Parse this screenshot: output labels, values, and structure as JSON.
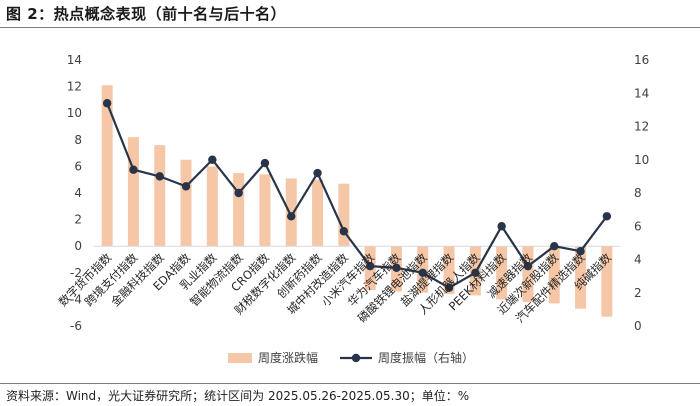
{
  "header": {
    "title": "图 2：热点概念表现（前十名与后十名）"
  },
  "footer": {
    "source": "资料来源：Wind，光大证券研究所；统计区间为 2025.05.26-2025.05.30；单位：%"
  },
  "colors": {
    "bar": "#f6c7a6",
    "line": "#273449",
    "axis": "#d9d9d9"
  },
  "chart_data": {
    "type": "bar",
    "categories": [
      "数字货币指数",
      "跨境支付指数",
      "金融科技指数",
      "EDA指数",
      "乳业指数",
      "智能物流指数",
      "CRO指数",
      "财税数字化指数",
      "创新药指数",
      "城中村改造指数",
      "小米汽车指数",
      "华为汽车指数",
      "磷酸铁锂电池指数",
      "盐湖提锂指数",
      "人形机器人指数",
      "PEEK材料指数",
      "减速器指数",
      "近端次新股指数",
      "汽车配件精选指数",
      "纯碱指数"
    ],
    "series": [
      {
        "name": "周度涨跌幅",
        "axis": "left",
        "values": [
          12.1,
          8.2,
          7.6,
          6.5,
          6.0,
          5.5,
          5.4,
          5.1,
          5.0,
          4.7,
          -3.3,
          -3.4,
          -3.5,
          -3.6,
          -3.7,
          -4.0,
          -4.2,
          -4.3,
          -4.7,
          -5.3
        ]
      },
      {
        "name": "周度振幅（右轴）",
        "axis": "right",
        "values": [
          13.4,
          9.4,
          9.0,
          8.4,
          10.0,
          8.0,
          9.8,
          6.6,
          9.2,
          5.7,
          3.6,
          3.5,
          3.2,
          2.3,
          3.2,
          6.0,
          3.6,
          4.8,
          4.5,
          6.6
        ]
      }
    ],
    "yticks_left": [
      -6,
      -4,
      -2,
      0,
      2,
      4,
      6,
      8,
      10,
      12,
      14
    ],
    "yticks_right": [
      0,
      2,
      4,
      6,
      8,
      10,
      12,
      14,
      16
    ],
    "ylim_left": [
      -6,
      14
    ],
    "ylim_right": [
      0,
      16
    ],
    "legend_position": "bottom",
    "grid": false
  }
}
